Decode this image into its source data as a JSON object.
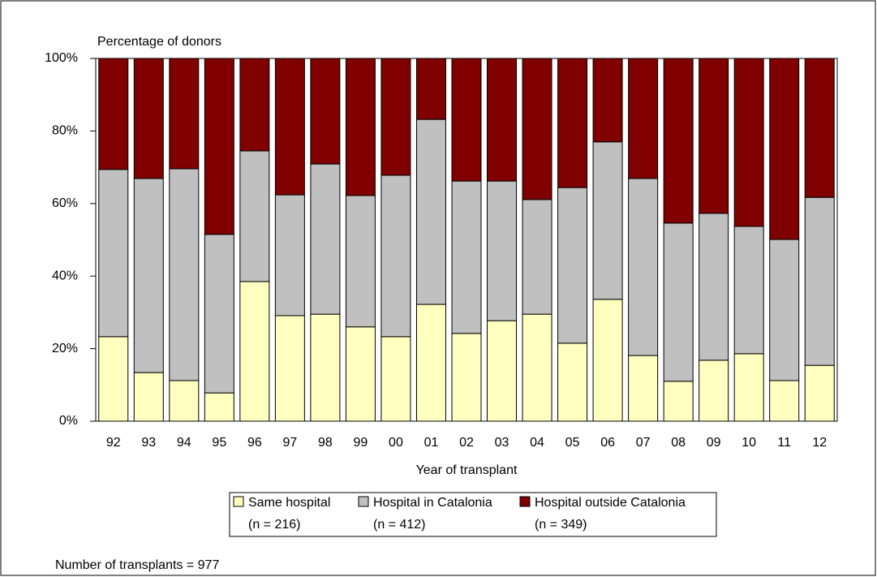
{
  "chart_data": {
    "type": "stacked-bar",
    "y_label": "Percentage of donors",
    "x_label": "Year of transplant",
    "footnote": "Number of transplants = 977",
    "categories": [
      "92",
      "93",
      "94",
      "95",
      "96",
      "97",
      "98",
      "99",
      "00",
      "01",
      "02",
      "03",
      "04",
      "05",
      "06",
      "07",
      "08",
      "09",
      "10",
      "11",
      "12"
    ],
    "series": [
      {
        "name": "Same hospital",
        "n_label": "(n = 216)",
        "color": "#ffffc0",
        "values": [
          23.3,
          13.4,
          11.2,
          7.8,
          38.5,
          29.1,
          29.5,
          26.0,
          23.3,
          32.2,
          24.2,
          27.7,
          29.5,
          21.5,
          33.6,
          18.1,
          11.0,
          16.8,
          18.6,
          11.2,
          15.4
        ]
      },
      {
        "name": "Hospital in Catalonia",
        "n_label": "(n = 412)",
        "color": "#c0c0c0",
        "values": [
          46.1,
          53.5,
          58.4,
          43.7,
          36.0,
          33.3,
          41.4,
          36.2,
          44.5,
          51.0,
          42.0,
          38.5,
          31.6,
          42.9,
          43.4,
          48.8,
          43.6,
          40.5,
          35.1,
          38.9,
          46.3
        ]
      },
      {
        "name": "Hospital outside Catalonia",
        "n_label": "(n = 349)",
        "color": "#800000",
        "values": [
          30.6,
          33.1,
          30.4,
          48.5,
          25.5,
          37.6,
          29.1,
          37.8,
          32.2,
          16.8,
          33.8,
          33.8,
          38.9,
          35.6,
          23.0,
          33.1,
          45.4,
          42.7,
          46.3,
          49.9,
          38.3
        ]
      }
    ],
    "ylim": [
      0,
      100
    ],
    "yticks": [
      {
        "value": 0,
        "label": "0%"
      },
      {
        "value": 20,
        "label": "20%"
      },
      {
        "value": 40,
        "label": "40%"
      },
      {
        "value": 60,
        "label": "60%"
      },
      {
        "value": 80,
        "label": "80%"
      },
      {
        "value": 100,
        "label": "100%"
      }
    ]
  }
}
